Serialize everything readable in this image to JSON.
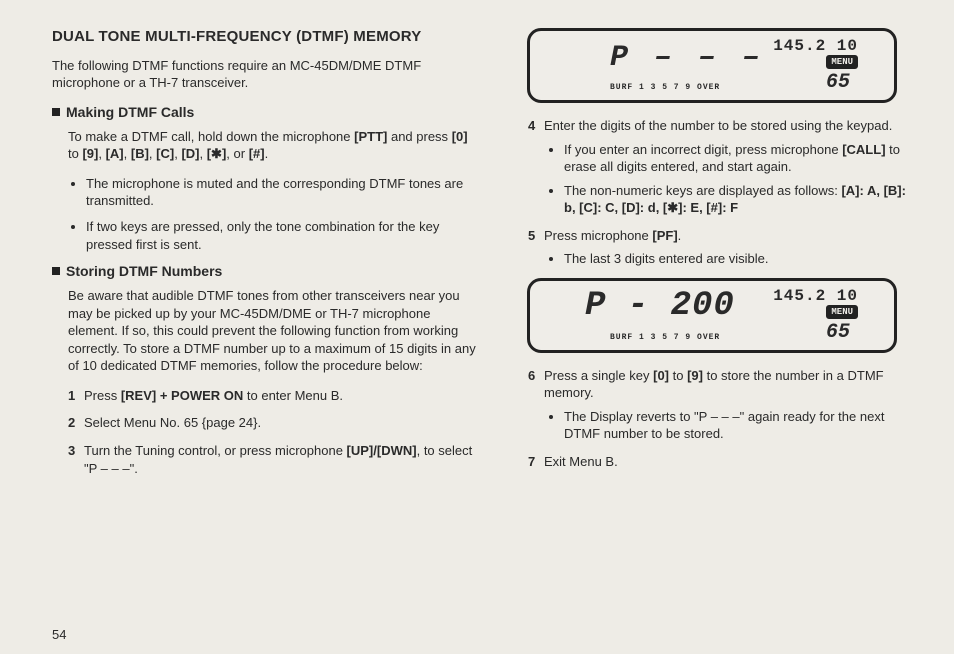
{
  "title": "DUAL TONE MULTI-FREQUENCY (DTMF) MEMORY",
  "intro": "The following DTMF functions require an MC-45DM/DME DTMF microphone or a TH-7 transceiver.",
  "sec1": {
    "heading": "Making DTMF Calls",
    "p1a": "To make a DTMF call, hold down the microphone ",
    "p1b": "[PTT]",
    "p1c": " and press ",
    "p1d": "[0]",
    "p1e": " to ",
    "p1f": "[9]",
    "p1g": ", ",
    "p1h": "[A]",
    "p1i": ", ",
    "p1j": "[B]",
    "p1k": ", ",
    "p1l": "[C]",
    "p1m": ", ",
    "p1n": "[D]",
    "p1o": ", ",
    "p1p": "[✱]",
    "p1q": ", or ",
    "p1r": "[#]",
    "p1s": ".",
    "b1": "The microphone is muted and the corresponding DTMF tones are transmitted.",
    "b2": "If two keys are pressed, only the tone combination for the key pressed first is sent."
  },
  "sec2": {
    "heading": "Storing DTMF Numbers",
    "p1": "Be aware that audible DTMF tones from other transceivers near you may be picked up by your MC-45DM/DME or TH-7 microphone element. If so, this could prevent the following function from working correctly. To store a DTMF number up to a maximum of 15 digits in any of 10 dedicated DTMF memories, follow the procedure below:",
    "s1a": "Press ",
    "s1b": "[REV] + POWER ON",
    "s1c": " to enter Menu B.",
    "s2": "Select Menu No. 65 {page 24}.",
    "s3a": "Turn the Tuning control, or press microphone ",
    "s3b": "[UP]/[DWN]",
    "s3c": ", to select \"P – – –\"."
  },
  "right": {
    "s4": "Enter the digits of the number to be stored using the keypad.",
    "s4b1a": "If you enter an incorrect digit, press microphone ",
    "s4b1b": "[CALL]",
    "s4b1c": " to erase all digits entered, and start again.",
    "s4b2a": "The non-numeric keys are displayed as follows: ",
    "s4b2b": "[A]: A, [B]: b, [C]: C, [D]: d, [✱]: E, [#]: F",
    "s5a": "Press microphone ",
    "s5b": "[PF]",
    "s5c": ".",
    "s5b1": "The last 3 digits entered are visible.",
    "s6a": "Press a single key ",
    "s6b": "[0]",
    "s6c": " to ",
    "s6d": "[9]",
    "s6e": " to store the number in a DTMF memory.",
    "s6b1": "The Display reverts to \"P – – –\" again ready for the next DTMF number to be stored.",
    "s7": "Exit Menu B."
  },
  "lcd1": {
    "freq": "145.2 10",
    "big": "P – – –",
    "menu_no": "65",
    "meter": "BURF  1 3 5 7 9 OVER"
  },
  "lcd2": {
    "freq": "145.2 10",
    "big": "P - 200",
    "menu_no": "65",
    "meter": "BURF  1 3 5 7 9 OVER"
  },
  "menu_label": "MENU",
  "page": "54"
}
